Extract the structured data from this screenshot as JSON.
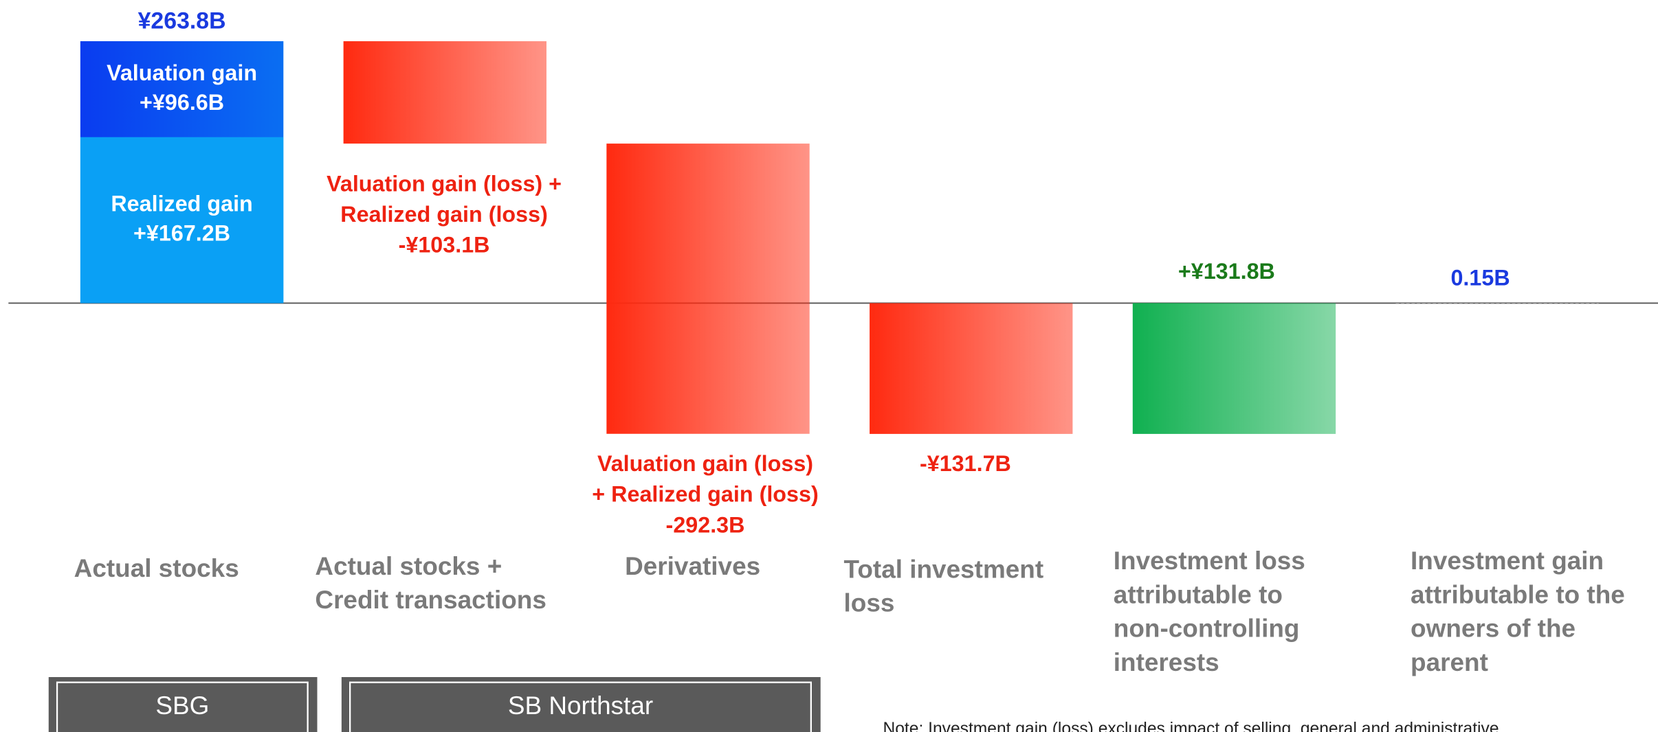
{
  "chart_data": {
    "type": "waterfall",
    "categories": [
      "Actual stocks",
      "Actual stocks +\nCredit transactions",
      "Derivatives",
      "Total investment\nloss",
      "Investment loss\nattributable to\nnon-controlling\ninterests",
      "Investment gain\nattributable to the\nowners of the\nparent"
    ],
    "values": [
      263.8,
      -103.1,
      -292.3,
      -131.7,
      131.8,
      0.15
    ],
    "value_labels": [
      "¥263.8B",
      "Valuation gain (loss) +\nRealized gain (loss)\n-¥103.1B",
      "Valuation gain (loss)\n+ Realized gain (loss)\n-292.3B",
      "-¥131.7B",
      "+¥131.8B",
      "0.15B"
    ],
    "bar_kinds": [
      "step",
      "step",
      "step",
      "total",
      "step",
      "total"
    ],
    "colors": [
      "#0aa0f5",
      "#ff2a10",
      "#ff2a10",
      "#ff2a10",
      "#10b050",
      "#8a8a8a"
    ],
    "label_colors": [
      "#1a3adf",
      "#ee2211",
      "#ee2211",
      "#ee2211",
      "#1a7a1a",
      "#1a3adf"
    ],
    "segments": [
      {
        "name": "Realized gain",
        "value": 167.2,
        "value_label": "+¥167.2B",
        "color": "#0aa0f5"
      },
      {
        "name": "Valuation gain",
        "value": 96.6,
        "value_label": "+¥96.6B",
        "color": "#0a3cf0"
      }
    ],
    "groups": [
      "SBG",
      "SB Northstar"
    ],
    "note": "Note: Investment gain (loss) excludes impact of selling, general and administrative"
  }
}
